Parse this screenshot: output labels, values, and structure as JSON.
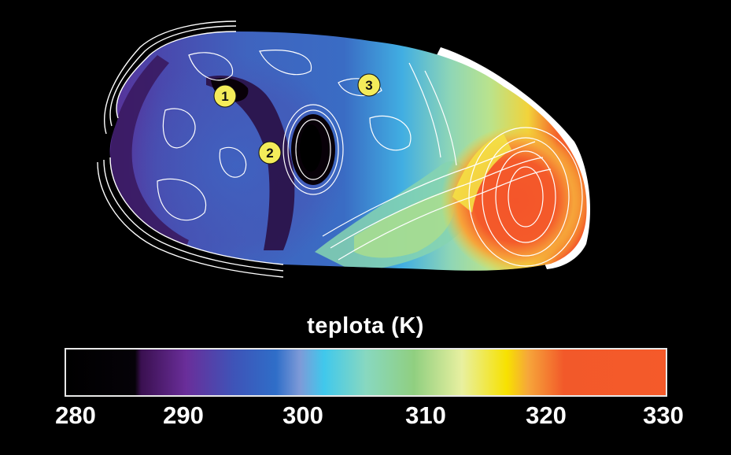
{
  "scale": {
    "title": "teplota (K)",
    "min": 280,
    "max": 330,
    "ticks": [
      "280",
      "290",
      "300",
      "310",
      "320",
      "330"
    ],
    "stops": [
      {
        "t": 0.0,
        "color": "#000000"
      },
      {
        "t": 0.115,
        "color": "#050208"
      },
      {
        "t": 0.125,
        "color": "#3a1050"
      },
      {
        "t": 0.2,
        "color": "#6a2e9a"
      },
      {
        "t": 0.28,
        "color": "#3e54b8"
      },
      {
        "t": 0.35,
        "color": "#2f6ec8"
      },
      {
        "t": 0.39,
        "color": "#7e9ad8"
      },
      {
        "t": 0.43,
        "color": "#40c8ec"
      },
      {
        "t": 0.5,
        "color": "#88d8c0"
      },
      {
        "t": 0.58,
        "color": "#90cf80"
      },
      {
        "t": 0.66,
        "color": "#e8f0a0"
      },
      {
        "t": 0.735,
        "color": "#f7e100"
      },
      {
        "t": 0.77,
        "color": "#f6a73a"
      },
      {
        "t": 0.83,
        "color": "#f2592a"
      },
      {
        "t": 1.0,
        "color": "#f55a2a"
      }
    ]
  },
  "markers": [
    {
      "label": "1"
    },
    {
      "label": "2"
    },
    {
      "label": "3"
    }
  ],
  "colors": {
    "background": "#000000",
    "marker_fill": "#f4ec5a",
    "contour": "#ffffff",
    "limb": "#ffffff"
  }
}
